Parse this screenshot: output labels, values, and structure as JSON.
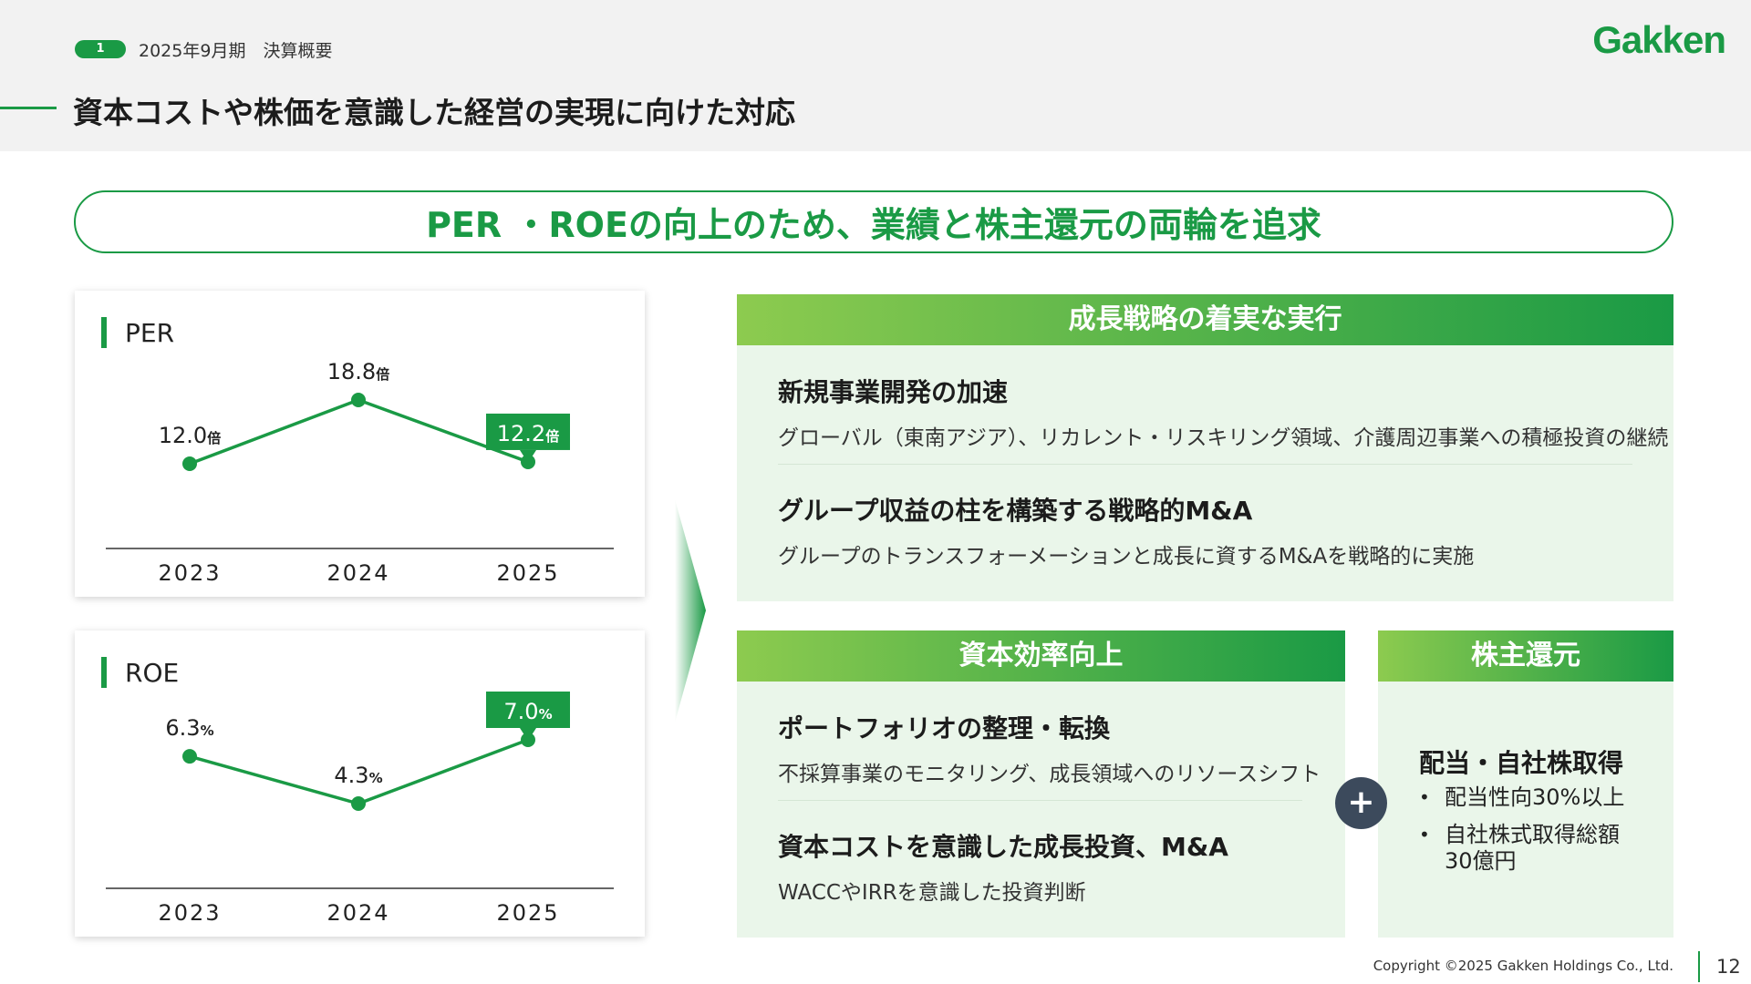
{
  "header": {
    "page_badge": "1",
    "subtitle": "2025年9月期　決算概要",
    "title": "資本コストや株価を意識した経営の実現に向けた対応",
    "logo": "Gakken"
  },
  "banner": "PER ・ROEの向上のため、業績と株主還元の両輪を追求",
  "charts": {
    "per": {
      "title": "PER"
    },
    "roe": {
      "title": "ROE"
    }
  },
  "chart_data": [
    {
      "type": "line",
      "title": "PER",
      "categories": [
        "2023",
        "2024",
        "2025"
      ],
      "values": [
        12.0,
        18.8,
        12.2
      ],
      "labels": [
        "12.0",
        "18.8",
        "12.2"
      ],
      "unit": "倍",
      "highlight_index": 2,
      "color": "#1a9a45"
    },
    {
      "type": "line",
      "title": "ROE",
      "categories": [
        "2023",
        "2024",
        "2025"
      ],
      "values": [
        6.3,
        4.3,
        7.0
      ],
      "labels": [
        "6.3",
        "4.3",
        "7.0"
      ],
      "unit": "%",
      "highlight_index": 2,
      "color": "#1a9a45"
    }
  ],
  "growth": {
    "heading": "成長戦略の着実な実行",
    "items": [
      {
        "title": "新規事業開発の加速",
        "desc": "グローバル（東南アジア）、リカレント・リスキリング領域、介護周辺事業への積極投資の継続"
      },
      {
        "title": "グループ収益の柱を構築する戦略的M&A",
        "desc": "グループのトランスフォーメーションと成長に資するM&Aを戦略的に実施"
      }
    ]
  },
  "capital": {
    "heading": "資本効率向上",
    "items": [
      {
        "title": "ポートフォリオの整理・転換",
        "desc": "不採算事業のモニタリング、成長領域へのリソースシフト"
      },
      {
        "title": "資本コストを意識した成長投資、M&A",
        "desc": "WACCやIRRを意識した投資判断"
      }
    ]
  },
  "plus": "+",
  "shareholder": {
    "heading": "株主還元",
    "title": "配当・自社株取得",
    "bullets": [
      "配当性向30%以上",
      "自社株式取得総額30億円"
    ]
  },
  "footer": {
    "copyright": "Copyright ©2025 Gakken Holdings Co., Ltd.",
    "page": "12"
  },
  "colors": {
    "accent": "#1a9a45",
    "light_green": "#8dcb4f",
    "panel_bg": "#eaf6ea",
    "plus_bg": "#3c4a5c"
  }
}
